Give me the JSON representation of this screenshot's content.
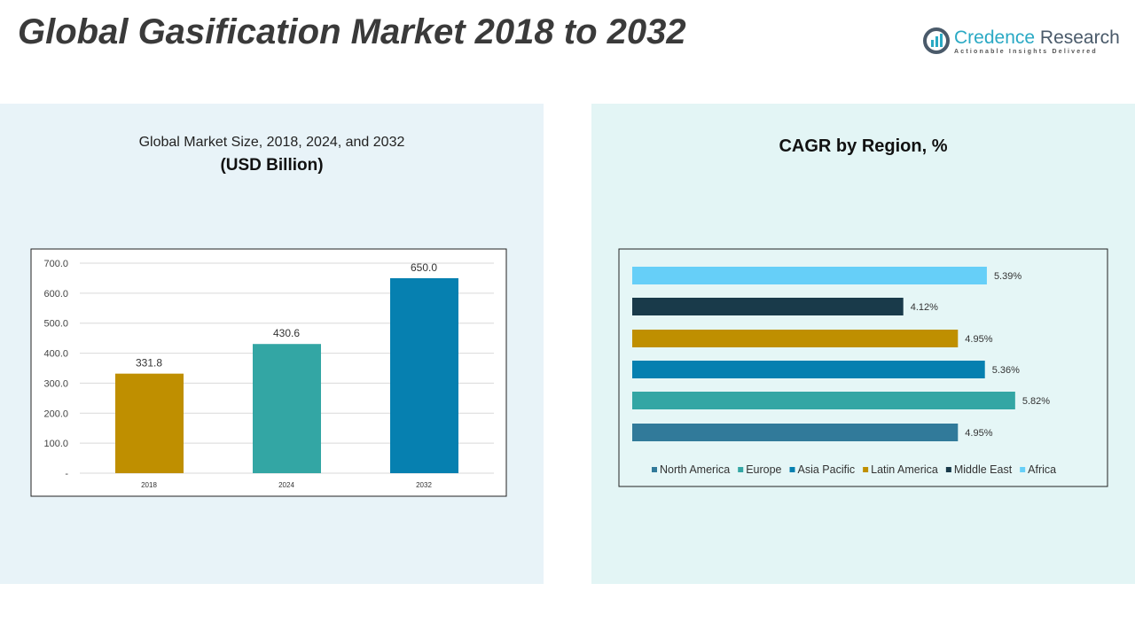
{
  "title": "Global Gasification Market 2018 to 2032",
  "logo": {
    "name1": "Credence",
    "name2": "Research",
    "tagline": "Actionable Insights Delivered"
  },
  "chart_data": [
    {
      "type": "bar",
      "title": "Global Market Size, 2018, 2024, and 2032",
      "subtitle": "(USD Billion)",
      "categories": [
        "2018",
        "2024",
        "2032"
      ],
      "values": [
        331.8,
        430.6,
        650.0
      ],
      "value_labels": [
        "331.8",
        "430.6",
        "650.0"
      ],
      "colors": [
        "#bf8f00",
        "#33a6a4",
        "#0680b0"
      ],
      "ylim": [
        0,
        700
      ],
      "yticks": [
        "-",
        "100.0",
        "200.0",
        "300.0",
        "400.0",
        "500.0",
        "600.0",
        "700.0"
      ],
      "grid": true
    },
    {
      "type": "bar",
      "orientation": "horizontal",
      "title": "CAGR by Region, %",
      "categories": [
        "North America",
        "Europe",
        "Asia Pacific",
        "Latin America",
        "Middle East",
        "Africa"
      ],
      "values": [
        4.95,
        5.82,
        5.36,
        4.95,
        4.12,
        5.39
      ],
      "value_labels": [
        "4.95%",
        "5.82%",
        "5.36%",
        "4.95%",
        "4.12%",
        "5.39%"
      ],
      "colors": [
        "#317a9a",
        "#33a6a4",
        "#0680b0",
        "#bf8f00",
        "#193a4a",
        "#66cff8"
      ],
      "legend": "bottom"
    }
  ]
}
